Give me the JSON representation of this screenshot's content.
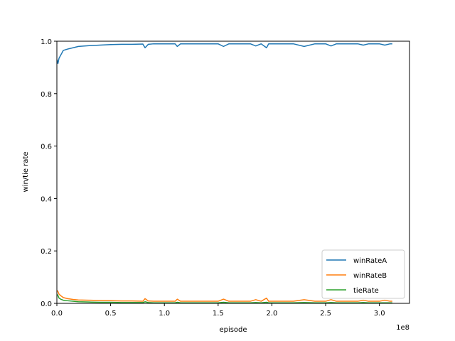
{
  "chart_data": {
    "type": "line",
    "title": "",
    "xlabel": "episode",
    "ylabel": "win/tie rate",
    "x_offset_label": "1e8",
    "xlim": [
      0,
      3.28
    ],
    "ylim": [
      0,
      1.0
    ],
    "xticks": [
      0.0,
      0.5,
      1.0,
      1.5,
      2.0,
      2.5,
      3.0
    ],
    "xtick_labels": [
      "0.0",
      "0.5",
      "1.0",
      "1.5",
      "2.0",
      "2.5",
      "3.0"
    ],
    "yticks": [
      0.0,
      0.2,
      0.4,
      0.6,
      0.8,
      1.0
    ],
    "ytick_labels": [
      "0.0",
      "0.2",
      "0.4",
      "0.6",
      "0.8",
      "1.0"
    ],
    "grid": false,
    "legend_position": "lower-right",
    "x": [
      0.0,
      0.01,
      0.02,
      0.04,
      0.06,
      0.1,
      0.15,
      0.2,
      0.3,
      0.4,
      0.5,
      0.6,
      0.7,
      0.8,
      0.82,
      0.85,
      0.9,
      1.0,
      1.1,
      1.12,
      1.15,
      1.2,
      1.3,
      1.4,
      1.5,
      1.55,
      1.6,
      1.7,
      1.8,
      1.85,
      1.9,
      1.95,
      1.97,
      2.0,
      2.1,
      2.2,
      2.3,
      2.4,
      2.5,
      2.55,
      2.6,
      2.7,
      2.8,
      2.85,
      2.9,
      3.0,
      3.05,
      3.1,
      3.12
    ],
    "series": [
      {
        "name": "winRateA",
        "color": "#1f77b4",
        "values": [
          0.93,
          0.915,
          0.935,
          0.95,
          0.965,
          0.97,
          0.975,
          0.98,
          0.983,
          0.985,
          0.987,
          0.988,
          0.988,
          0.989,
          0.975,
          0.988,
          0.99,
          0.99,
          0.99,
          0.98,
          0.99,
          0.99,
          0.99,
          0.99,
          0.99,
          0.98,
          0.99,
          0.99,
          0.99,
          0.982,
          0.99,
          0.975,
          0.99,
          0.99,
          0.99,
          0.99,
          0.98,
          0.99,
          0.99,
          0.982,
          0.99,
          0.99,
          0.99,
          0.985,
          0.99,
          0.99,
          0.985,
          0.99,
          0.99
        ]
      },
      {
        "name": "winRateB",
        "color": "#ff7f0e",
        "values": [
          0.05,
          0.045,
          0.035,
          0.028,
          0.022,
          0.018,
          0.015,
          0.013,
          0.012,
          0.011,
          0.01,
          0.009,
          0.009,
          0.008,
          0.018,
          0.009,
          0.008,
          0.008,
          0.008,
          0.016,
          0.008,
          0.008,
          0.008,
          0.008,
          0.008,
          0.016,
          0.008,
          0.008,
          0.008,
          0.014,
          0.008,
          0.02,
          0.008,
          0.008,
          0.008,
          0.008,
          0.014,
          0.008,
          0.008,
          0.014,
          0.008,
          0.008,
          0.008,
          0.012,
          0.008,
          0.008,
          0.012,
          0.008,
          0.008
        ]
      },
      {
        "name": "tieRate",
        "color": "#2ca02c",
        "values": [
          0.035,
          0.03,
          0.02,
          0.015,
          0.012,
          0.01,
          0.008,
          0.006,
          0.005,
          0.004,
          0.004,
          0.003,
          0.003,
          0.003,
          0.006,
          0.003,
          0.002,
          0.002,
          0.002,
          0.004,
          0.002,
          0.002,
          0.002,
          0.002,
          0.002,
          0.004,
          0.002,
          0.002,
          0.002,
          0.003,
          0.002,
          0.004,
          0.002,
          0.002,
          0.002,
          0.002,
          0.003,
          0.002,
          0.002,
          0.003,
          0.002,
          0.002,
          0.002,
          0.003,
          0.002,
          0.002,
          0.002,
          0.002,
          0.002
        ]
      }
    ]
  }
}
